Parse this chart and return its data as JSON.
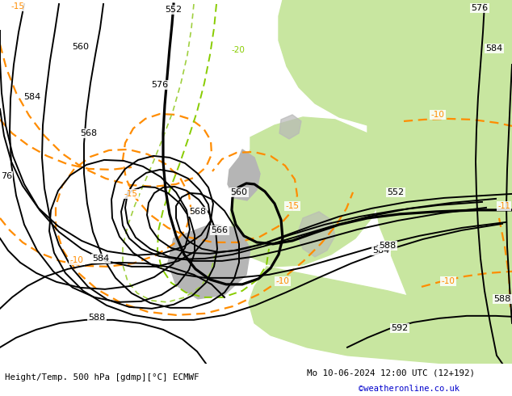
{
  "title_left": "Height/Temp. 500 hPa [gdmp][°C] ECMWF",
  "title_right": "Mo 10-06-2024 12:00 UTC (12+192)",
  "credit": "©weatheronline.co.uk",
  "figsize": [
    6.34,
    4.9
  ],
  "dpi": 100,
  "bg_gray": "#c8c8c8",
  "bg_green": "#c8e6a0",
  "orange": "#ff8c00",
  "green_line": "#88cc00",
  "black": "#000000",
  "white": "#ffffff"
}
